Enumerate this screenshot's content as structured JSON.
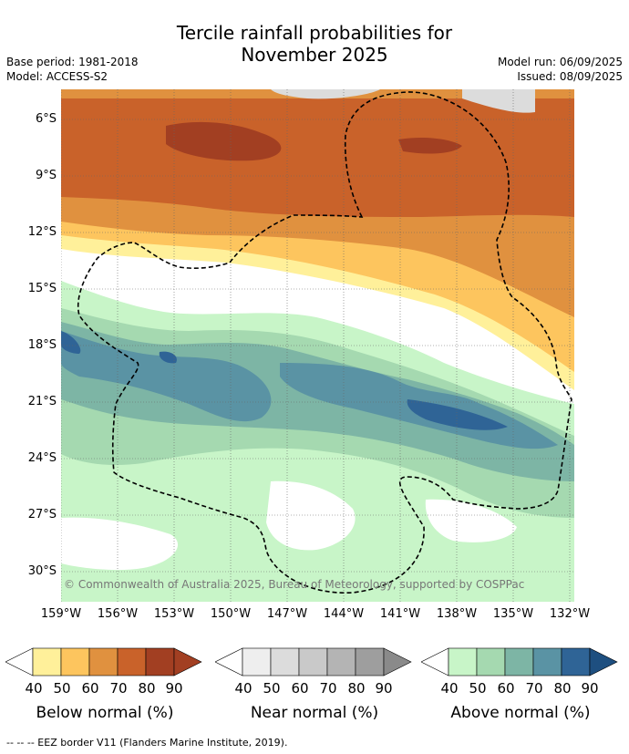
{
  "title_line1": "Tercile rainfall probabilities for",
  "title_line2": "November 2025",
  "meta": {
    "base_period": "Base period: 1981-2018",
    "model": "Model: ACCESS-S2",
    "model_run": "Model run: 06/09/2025",
    "issued": "Issued: 08/09/2025"
  },
  "y_ticks": [
    "6°S",
    "9°S",
    "12°S",
    "15°S",
    "18°S",
    "21°S",
    "24°S",
    "27°S",
    "30°S"
  ],
  "x_ticks": [
    "159°W",
    "156°W",
    "153°W",
    "150°W",
    "147°W",
    "144°W",
    "141°W",
    "138°W",
    "135°W",
    "132°W"
  ],
  "copyright": "© Commonwealth of Australia 2025, Bureau of Meteorology, supported by COSPPac",
  "legends": [
    {
      "title": "Below normal (%)",
      "colors": [
        "#fff09a",
        "#fdc55e",
        "#e0913f",
        "#c9622a",
        "#a23f22",
        "#a23f22"
      ],
      "ticks": [
        "40",
        "50",
        "60",
        "70",
        "80",
        "90"
      ]
    },
    {
      "title": "Near normal (%)",
      "colors": [
        "#eeeeee",
        "#dcdcdc",
        "#c9c9c9",
        "#b4b4b4",
        "#9e9e9e",
        "#8a8a8a"
      ],
      "ticks": [
        "40",
        "50",
        "60",
        "70",
        "80",
        "90"
      ]
    },
    {
      "title": "Above normal (%)",
      "colors": [
        "#c8f5c8",
        "#a5d9b0",
        "#7db5a5",
        "#5a93a4",
        "#2f6496",
        "#1e4f80"
      ],
      "ticks": [
        "40",
        "50",
        "60",
        "70",
        "80",
        "90"
      ]
    }
  ],
  "footer": "-- -- -- EEZ border V11 (Flanders Marine Institute, 2019)."
}
